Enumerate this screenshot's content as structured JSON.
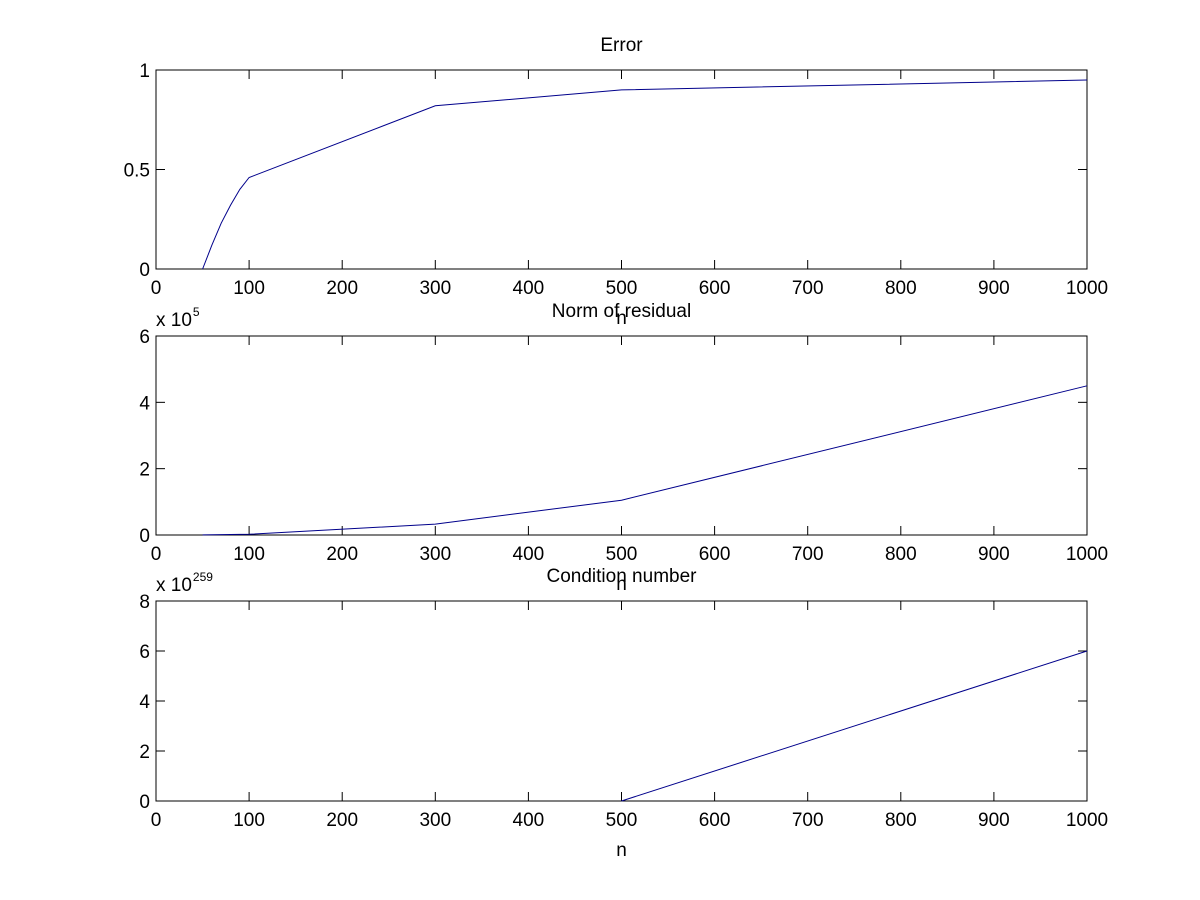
{
  "colors": {
    "line": "#00008B",
    "axes": "#000000",
    "background": "#ffffff"
  },
  "chart_data": [
    {
      "type": "line",
      "title": "Error",
      "xlabel": "n",
      "ylabel": "",
      "exponent_label": {
        "base": "",
        "power": ""
      },
      "xlim": [
        0,
        1000
      ],
      "ylim": [
        0,
        1
      ],
      "xticks": [
        0,
        100,
        200,
        300,
        400,
        500,
        600,
        700,
        800,
        900,
        1000
      ],
      "xtick_labels": [
        "0",
        "100",
        "200",
        "300",
        "400",
        "500",
        "600",
        "700",
        "800",
        "900",
        "1000"
      ],
      "yticks": [
        0,
        0.5,
        1
      ],
      "ytick_labels": [
        "0",
        "0.5",
        "1"
      ],
      "grid": false,
      "series": [
        {
          "x": [
            50,
            60,
            70,
            80,
            90,
            100,
            300,
            500,
            1000
          ],
          "y": [
            0,
            0.12,
            0.23,
            0.32,
            0.4,
            0.46,
            0.82,
            0.9,
            0.95
          ]
        }
      ]
    },
    {
      "type": "line",
      "title": "Norm of residual",
      "xlabel": "n",
      "ylabel": "",
      "exponent_label": {
        "base": "x 10",
        "power": "5"
      },
      "xlim": [
        0,
        1000
      ],
      "ylim": [
        0,
        6
      ],
      "xticks": [
        0,
        100,
        200,
        300,
        400,
        500,
        600,
        700,
        800,
        900,
        1000
      ],
      "xtick_labels": [
        "0",
        "100",
        "200",
        "300",
        "400",
        "500",
        "600",
        "700",
        "800",
        "900",
        "1000"
      ],
      "yticks": [
        0,
        2,
        4,
        6
      ],
      "ytick_labels": [
        "0",
        "2",
        "4",
        "6"
      ],
      "grid": false,
      "series": [
        {
          "x": [
            50,
            100,
            300,
            500,
            1000
          ],
          "y": [
            0.003,
            0.02,
            0.33,
            1.05,
            4.5
          ]
        }
      ]
    },
    {
      "type": "line",
      "title": "Condition number",
      "xlabel": "n",
      "ylabel": "",
      "exponent_label": {
        "base": "x 10",
        "power": "259"
      },
      "xlim": [
        0,
        1000
      ],
      "ylim": [
        0,
        8
      ],
      "xticks": [
        0,
        100,
        200,
        300,
        400,
        500,
        600,
        700,
        800,
        900,
        1000
      ],
      "xtick_labels": [
        "0",
        "100",
        "200",
        "300",
        "400",
        "500",
        "600",
        "700",
        "800",
        "900",
        "1000"
      ],
      "yticks": [
        0,
        2,
        4,
        6,
        8
      ],
      "ytick_labels": [
        "0",
        "2",
        "4",
        "6",
        "8"
      ],
      "grid": false,
      "series": [
        {
          "x": [
            500,
            1000
          ],
          "y": [
            0,
            6
          ]
        }
      ]
    }
  ]
}
